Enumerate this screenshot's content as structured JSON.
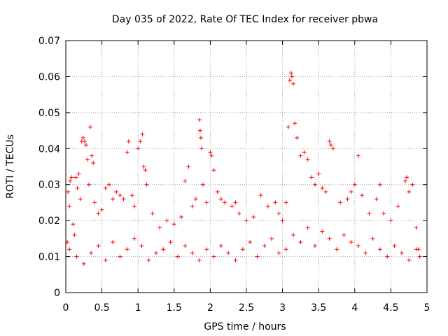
{
  "chart_data": {
    "type": "scatter",
    "title": "Day 035 of 2022, Rate Of TEC Index for receiver pbwa",
    "xlabel": "GPS time / hours",
    "ylabel": "ROTI / TECUs",
    "xlim": [
      0,
      5
    ],
    "ylim": [
      0,
      0.07
    ],
    "x_ticks": [
      "0",
      "0.5",
      "1",
      "1.5",
      "2",
      "2.5",
      "3",
      "3.5",
      "4",
      "4.5",
      "5"
    ],
    "y_ticks": [
      "0",
      "0.01",
      "0.02",
      "0.03",
      "0.04",
      "0.05",
      "0.06",
      "0.07"
    ],
    "grid": true,
    "marker": "+",
    "series": [
      {
        "name": "ROTI",
        "color": "#ff0000",
        "points": [
          [
            0.02,
            0.014
          ],
          [
            0.03,
            0.028
          ],
          [
            0.05,
            0.024
          ],
          [
            0.06,
            0.031
          ],
          [
            0.08,
            0.032
          ],
          [
            0.1,
            0.019
          ],
          [
            0.12,
            0.016
          ],
          [
            0.14,
            0.032
          ],
          [
            0.16,
            0.029
          ],
          [
            0.18,
            0.033
          ],
          [
            0.2,
            0.026
          ],
          [
            0.22,
            0.042
          ],
          [
            0.24,
            0.043
          ],
          [
            0.26,
            0.042
          ],
          [
            0.28,
            0.041
          ],
          [
            0.3,
            0.037
          ],
          [
            0.32,
            0.03
          ],
          [
            0.34,
            0.046
          ],
          [
            0.36,
            0.038
          ],
          [
            0.38,
            0.036
          ],
          [
            0.4,
            0.025
          ],
          [
            0.45,
            0.022
          ],
          [
            0.5,
            0.023
          ],
          [
            0.55,
            0.029
          ],
          [
            0.6,
            0.03
          ],
          [
            0.65,
            0.026
          ],
          [
            0.7,
            0.028
          ],
          [
            0.75,
            0.027
          ],
          [
            0.8,
            0.026
          ],
          [
            0.85,
            0.039
          ],
          [
            0.87,
            0.042
          ],
          [
            0.92,
            0.027
          ],
          [
            0.95,
            0.024
          ],
          [
            1.0,
            0.04
          ],
          [
            1.03,
            0.042
          ],
          [
            1.06,
            0.044
          ],
          [
            1.08,
            0.035
          ],
          [
            1.1,
            0.034
          ],
          [
            1.12,
            0.03
          ],
          [
            1.2,
            0.022
          ],
          [
            1.3,
            0.018
          ],
          [
            1.4,
            0.02
          ],
          [
            1.5,
            0.019
          ],
          [
            1.6,
            0.021
          ],
          [
            1.65,
            0.031
          ],
          [
            1.7,
            0.035
          ],
          [
            1.75,
            0.024
          ],
          [
            1.8,
            0.026
          ],
          [
            1.85,
            0.048
          ],
          [
            1.86,
            0.045
          ],
          [
            1.87,
            0.043
          ],
          [
            1.88,
            0.04
          ],
          [
            1.9,
            0.03
          ],
          [
            1.95,
            0.025
          ],
          [
            2.0,
            0.039
          ],
          [
            2.02,
            0.038
          ],
          [
            2.05,
            0.034
          ],
          [
            2.1,
            0.028
          ],
          [
            2.15,
            0.026
          ],
          [
            2.2,
            0.025
          ],
          [
            2.3,
            0.024
          ],
          [
            2.35,
            0.025
          ],
          [
            2.4,
            0.022
          ],
          [
            2.5,
            0.02
          ],
          [
            2.6,
            0.021
          ],
          [
            2.7,
            0.027
          ],
          [
            2.8,
            0.024
          ],
          [
            2.9,
            0.025
          ],
          [
            2.95,
            0.022
          ],
          [
            3.0,
            0.02
          ],
          [
            3.05,
            0.025
          ],
          [
            3.08,
            0.046
          ],
          [
            3.1,
            0.059
          ],
          [
            3.12,
            0.061
          ],
          [
            3.13,
            0.06
          ],
          [
            3.15,
            0.058
          ],
          [
            3.17,
            0.047
          ],
          [
            3.2,
            0.043
          ],
          [
            3.25,
            0.038
          ],
          [
            3.3,
            0.039
          ],
          [
            3.35,
            0.037
          ],
          [
            3.4,
            0.032
          ],
          [
            3.45,
            0.03
          ],
          [
            3.5,
            0.033
          ],
          [
            3.55,
            0.029
          ],
          [
            3.6,
            0.028
          ],
          [
            3.65,
            0.042
          ],
          [
            3.67,
            0.041
          ],
          [
            3.7,
            0.04
          ],
          [
            3.8,
            0.025
          ],
          [
            3.9,
            0.026
          ],
          [
            3.95,
            0.028
          ],
          [
            4.0,
            0.03
          ],
          [
            4.05,
            0.038
          ],
          [
            4.1,
            0.027
          ],
          [
            4.2,
            0.022
          ],
          [
            4.3,
            0.026
          ],
          [
            4.35,
            0.03
          ],
          [
            4.4,
            0.022
          ],
          [
            4.5,
            0.02
          ],
          [
            4.6,
            0.024
          ],
          [
            4.7,
            0.031
          ],
          [
            4.72,
            0.032
          ],
          [
            4.75,
            0.028
          ],
          [
            4.8,
            0.03
          ],
          [
            4.85,
            0.018
          ],
          [
            4.88,
            0.012
          ],
          [
            0.05,
            0.012
          ],
          [
            0.15,
            0.01
          ],
          [
            0.25,
            0.008
          ],
          [
            0.35,
            0.011
          ],
          [
            0.45,
            0.013
          ],
          [
            0.55,
            0.009
          ],
          [
            0.65,
            0.014
          ],
          [
            0.75,
            0.01
          ],
          [
            0.85,
            0.012
          ],
          [
            0.95,
            0.015
          ],
          [
            1.05,
            0.013
          ],
          [
            1.15,
            0.009
          ],
          [
            1.25,
            0.011
          ],
          [
            1.35,
            0.012
          ],
          [
            1.45,
            0.014
          ],
          [
            1.55,
            0.01
          ],
          [
            1.65,
            0.013
          ],
          [
            1.75,
            0.011
          ],
          [
            1.85,
            0.009
          ],
          [
            1.95,
            0.012
          ],
          [
            2.05,
            0.01
          ],
          [
            2.15,
            0.013
          ],
          [
            2.25,
            0.011
          ],
          [
            2.35,
            0.009
          ],
          [
            2.45,
            0.012
          ],
          [
            2.55,
            0.014
          ],
          [
            2.65,
            0.01
          ],
          [
            2.75,
            0.013
          ],
          [
            2.85,
            0.015
          ],
          [
            2.95,
            0.011
          ],
          [
            3.05,
            0.012
          ],
          [
            3.15,
            0.016
          ],
          [
            3.25,
            0.014
          ],
          [
            3.35,
            0.018
          ],
          [
            3.45,
            0.013
          ],
          [
            3.55,
            0.017
          ],
          [
            3.65,
            0.015
          ],
          [
            3.75,
            0.012
          ],
          [
            3.85,
            0.016
          ],
          [
            3.95,
            0.014
          ],
          [
            4.05,
            0.013
          ],
          [
            4.15,
            0.011
          ],
          [
            4.25,
            0.015
          ],
          [
            4.35,
            0.012
          ],
          [
            4.45,
            0.01
          ],
          [
            4.55,
            0.013
          ],
          [
            4.65,
            0.011
          ],
          [
            4.75,
            0.009
          ],
          [
            4.85,
            0.012
          ],
          [
            4.9,
            0.01
          ]
        ]
      }
    ]
  }
}
